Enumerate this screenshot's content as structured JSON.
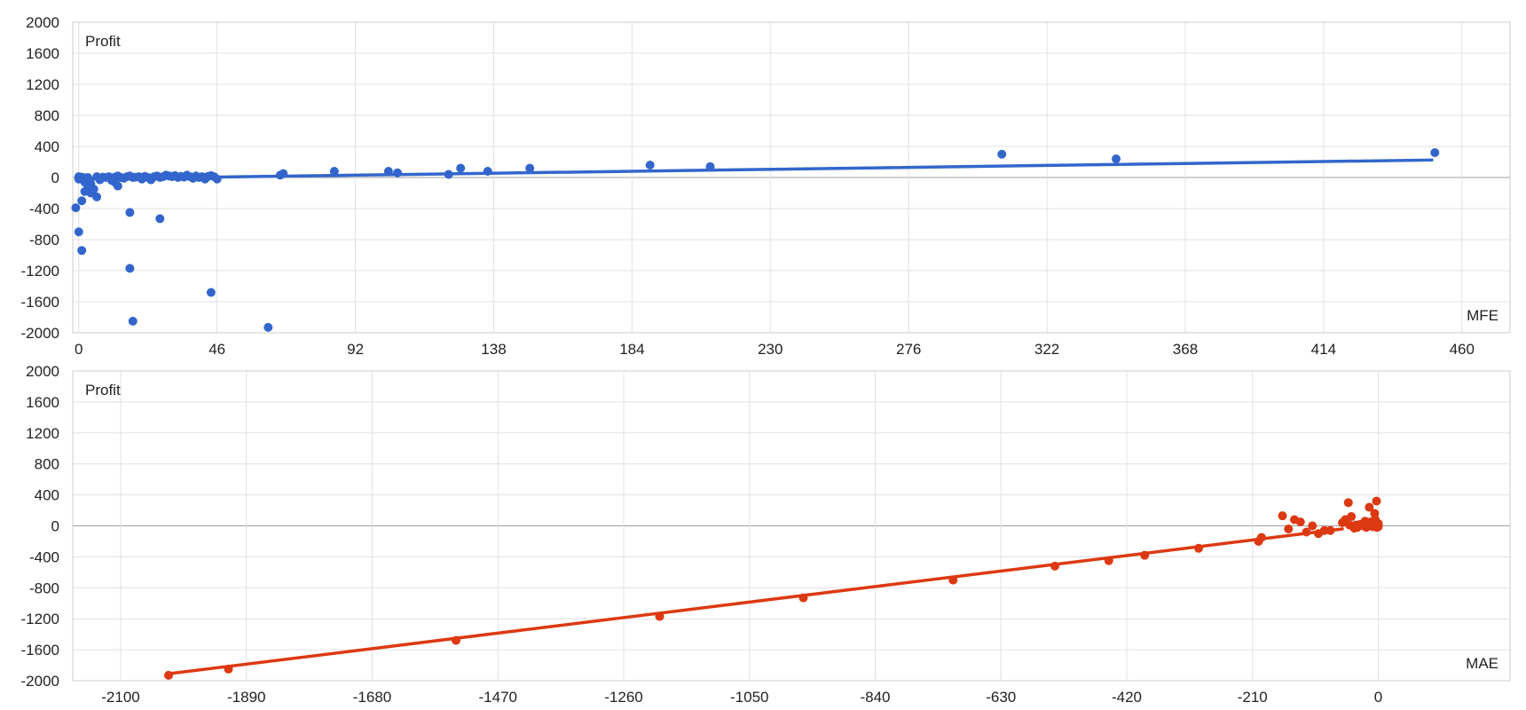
{
  "chart_data": [
    {
      "type": "scatter",
      "title": "",
      "xlabel": "MFE",
      "ylabel": "Profit",
      "xlim": [
        -2,
        476
      ],
      "ylim": [
        -2000,
        2000
      ],
      "x_ticks": [
        0,
        46,
        92,
        138,
        184,
        230,
        276,
        322,
        368,
        414,
        460
      ],
      "y_ticks": [
        2000,
        1600,
        1200,
        800,
        400,
        0,
        -400,
        -800,
        -1200,
        -1600,
        -2000
      ],
      "grid": true,
      "colors": {
        "points": "#3366cc",
        "trendline": "#3366cc"
      },
      "series": [
        {
          "points": [
            [
              0,
              0
            ],
            [
              0,
              -20
            ],
            [
              0,
              10
            ],
            [
              1,
              -10
            ],
            [
              1,
              5
            ],
            [
              2,
              -5
            ],
            [
              2,
              -60
            ],
            [
              3,
              0
            ],
            [
              3,
              -100
            ],
            [
              4,
              -200
            ],
            [
              4,
              -80
            ],
            [
              5,
              -150
            ],
            [
              6,
              -250
            ],
            [
              6,
              10
            ],
            [
              7,
              -30
            ],
            [
              8,
              5
            ],
            [
              9,
              0
            ],
            [
              10,
              10
            ],
            [
              11,
              -40
            ],
            [
              12,
              -60
            ],
            [
              12,
              5
            ],
            [
              13,
              20
            ],
            [
              14,
              0
            ],
            [
              15,
              -10
            ],
            [
              16,
              10
            ],
            [
              17,
              20
            ],
            [
              18,
              0
            ],
            [
              19,
              5
            ],
            [
              20,
              10
            ],
            [
              21,
              -20
            ],
            [
              22,
              15
            ],
            [
              23,
              0
            ],
            [
              24,
              -30
            ],
            [
              25,
              10
            ],
            [
              26,
              20
            ],
            [
              27,
              0
            ],
            [
              28,
              10
            ],
            [
              29,
              30
            ],
            [
              30,
              20
            ],
            [
              31,
              10
            ],
            [
              32,
              25
            ],
            [
              33,
              0
            ],
            [
              34,
              15
            ],
            [
              35,
              5
            ],
            [
              36,
              30
            ],
            [
              37,
              10
            ],
            [
              38,
              -10
            ],
            [
              39,
              20
            ],
            [
              40,
              0
            ],
            [
              41,
              10
            ],
            [
              42,
              -20
            ],
            [
              43,
              15
            ],
            [
              44,
              25
            ],
            [
              45,
              10
            ],
            [
              46,
              -20
            ],
            [
              -1,
              -390
            ],
            [
              0,
              -700
            ],
            [
              1,
              -940
            ],
            [
              1,
              -300
            ],
            [
              2,
              -180
            ],
            [
              13,
              -110
            ],
            [
              17,
              -450
            ],
            [
              17,
              -1170
            ],
            [
              18,
              -1850
            ],
            [
              27,
              -530
            ],
            [
              44,
              -1480
            ],
            [
              63,
              -1930
            ],
            [
              67,
              30
            ],
            [
              68,
              50
            ],
            [
              85,
              80
            ],
            [
              103,
              80
            ],
            [
              106,
              60
            ],
            [
              123,
              40
            ],
            [
              127,
              120
            ],
            [
              136,
              80
            ],
            [
              150,
              120
            ],
            [
              190,
              160
            ],
            [
              210,
              140
            ],
            [
              307,
              300
            ],
            [
              345,
              240
            ],
            [
              451,
              320
            ]
          ]
        }
      ],
      "trendline": {
        "from": [
          0,
          -20
        ],
        "to": [
          450,
          225
        ]
      }
    },
    {
      "type": "scatter",
      "title": "",
      "xlabel": "MAE",
      "ylabel": "Profit",
      "xlim": [
        -2180,
        220
      ],
      "ylim": [
        -2000,
        2000
      ],
      "x_ticks": [
        -2100,
        -1890,
        -1680,
        -1470,
        -1260,
        -1050,
        -840,
        -630,
        -420,
        -210,
        0
      ],
      "y_ticks": [
        2000,
        1600,
        1200,
        800,
        400,
        0,
        -400,
        -800,
        -1200,
        -1600,
        -2000
      ],
      "grid": true,
      "colors": {
        "points": "#dc3912",
        "trendline": "#dc3912"
      },
      "series": [
        {
          "points": [
            [
              -2020,
              -1930
            ],
            [
              -1920,
              -1850
            ],
            [
              -1540,
              -1480
            ],
            [
              -1200,
              -1170
            ],
            [
              -960,
              -930
            ],
            [
              -710,
              -700
            ],
            [
              -540,
              -520
            ],
            [
              -450,
              -450
            ],
            [
              -390,
              -380
            ],
            [
              -300,
              -290
            ],
            [
              -200,
              -200
            ],
            [
              -195,
              -150
            ],
            [
              -160,
              130
            ],
            [
              -150,
              -40
            ],
            [
              -140,
              80
            ],
            [
              -130,
              50
            ],
            [
              -120,
              -80
            ],
            [
              -110,
              0
            ],
            [
              -100,
              -100
            ],
            [
              -90,
              -60
            ],
            [
              -80,
              -60
            ],
            [
              -60,
              40
            ],
            [
              -55,
              80
            ],
            [
              -50,
              300
            ],
            [
              -48,
              10
            ],
            [
              -45,
              120
            ],
            [
              -40,
              -30
            ],
            [
              -38,
              10
            ],
            [
              -35,
              -20
            ],
            [
              -30,
              20
            ],
            [
              -25,
              0
            ],
            [
              -22,
              60
            ],
            [
              -20,
              -20
            ],
            [
              -18,
              10
            ],
            [
              -15,
              240
            ],
            [
              -12,
              0
            ],
            [
              -10,
              30
            ],
            [
              -8,
              -10
            ],
            [
              -6,
              160
            ],
            [
              -5,
              80
            ],
            [
              -4,
              0
            ],
            [
              -3,
              320
            ],
            [
              -2,
              20
            ],
            [
              -1,
              0
            ],
            [
              0,
              -10
            ],
            [
              0,
              10
            ],
            [
              0,
              30
            ],
            [
              -2,
              -20
            ],
            [
              -4,
              40
            ],
            [
              -7,
              10
            ],
            [
              -9,
              -10
            ],
            [
              -11,
              20
            ],
            [
              -13,
              50
            ],
            [
              -16,
              10
            ],
            [
              -19,
              -5
            ]
          ]
        }
      ],
      "trendline": {
        "from": [
          -2020,
          -1910
        ],
        "to": [
          -60,
          -40
        ]
      }
    }
  ]
}
